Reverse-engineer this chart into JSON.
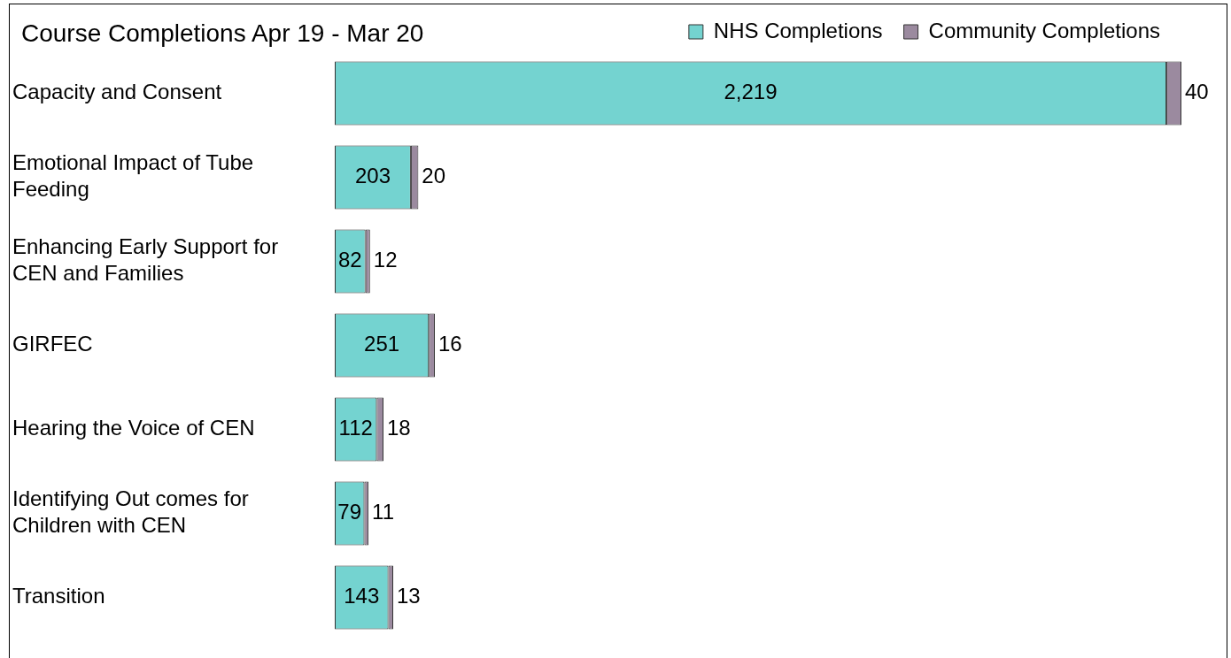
{
  "chart_data": {
    "type": "bar",
    "orientation": "horizontal",
    "stacked": true,
    "title": "Course Completions Apr 19 - Mar 20",
    "categories": [
      "Capacity and Consent",
      "Emotional Impact of Tube Feeding",
      "Enhancing Early Support for CEN and Families",
      "GIRFEC",
      "Hearing the Voice of CEN",
      "Identifying Out comes for Children with CEN",
      "Transition"
    ],
    "series": [
      {
        "name": "NHS Completions",
        "color": "#74d3d0",
        "values": [
          2219,
          203,
          82,
          251,
          112,
          79,
          143
        ],
        "value_labels": [
          "2,219",
          "203",
          "82",
          "251",
          "112",
          "79",
          "143"
        ]
      },
      {
        "name": "Community Completions",
        "color": "#9b8a9f",
        "values": [
          40,
          20,
          12,
          16,
          18,
          11,
          13
        ],
        "value_labels": [
          "40",
          "20",
          "12",
          "16",
          "18",
          "11",
          "13"
        ]
      }
    ],
    "legend": "top right",
    "grid": false
  }
}
